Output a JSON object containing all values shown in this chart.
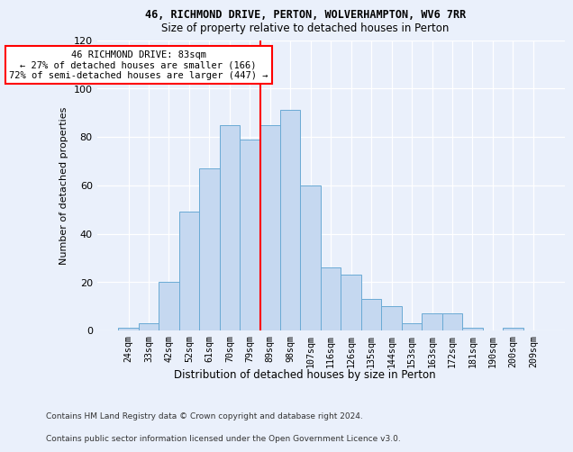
{
  "title1": "46, RICHMOND DRIVE, PERTON, WOLVERHAMPTON, WV6 7RR",
  "title2": "Size of property relative to detached houses in Perton",
  "xlabel": "Distribution of detached houses by size in Perton",
  "ylabel": "Number of detached properties",
  "categories": [
    "24sqm",
    "33sqm",
    "42sqm",
    "52sqm",
    "61sqm",
    "70sqm",
    "79sqm",
    "89sqm",
    "98sqm",
    "107sqm",
    "116sqm",
    "126sqm",
    "135sqm",
    "144sqm",
    "153sqm",
    "163sqm",
    "172sqm",
    "181sqm",
    "190sqm",
    "200sqm",
    "209sqm"
  ],
  "values": [
    1,
    3,
    20,
    49,
    67,
    85,
    79,
    85,
    91,
    60,
    26,
    23,
    13,
    10,
    3,
    7,
    7,
    1,
    0,
    1,
    0
  ],
  "bar_color": "#c5d8f0",
  "bar_edge_color": "#6aaad4",
  "vline_color": "red",
  "annotation_title": "46 RICHMOND DRIVE: 83sqm",
  "annotation_line2": "← 27% of detached houses are smaller (166)",
  "annotation_line3": "72% of semi-detached houses are larger (447) →",
  "annotation_box_color": "white",
  "annotation_box_edge": "red",
  "ylim": [
    0,
    120
  ],
  "yticks": [
    0,
    20,
    40,
    60,
    80,
    100,
    120
  ],
  "footnote1": "Contains HM Land Registry data © Crown copyright and database right 2024.",
  "footnote2": "Contains public sector information licensed under the Open Government Licence v3.0.",
  "background_color": "#eaf0fb",
  "bar_width": 1.0
}
